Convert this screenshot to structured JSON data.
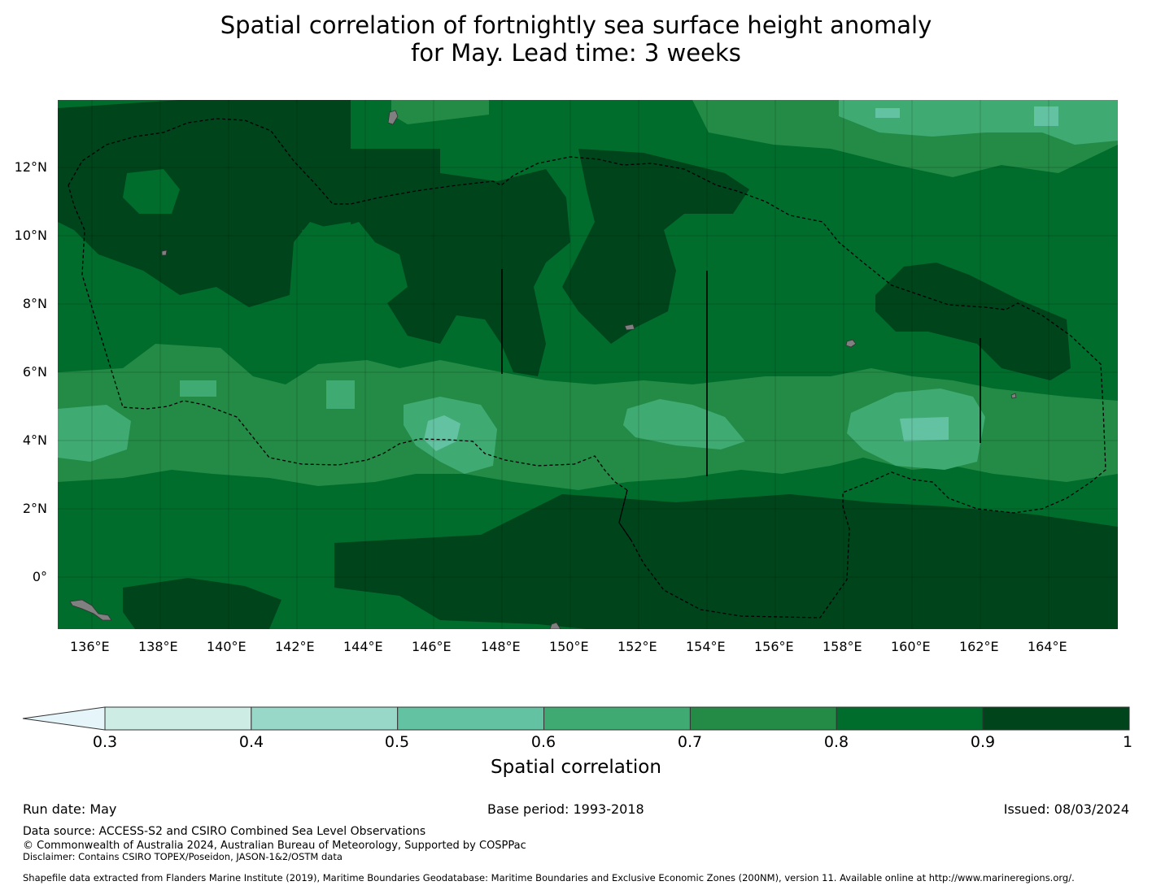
{
  "title": {
    "line1": "Spatial correlation of fortnightly sea surface height anomaly",
    "line2": "for May. Lead time: 3 weeks"
  },
  "map": {
    "lon_range": [
      135,
      166
    ],
    "lat_range": [
      -1.5,
      14
    ],
    "lat_ticks": [
      "12°N",
      "10°N",
      "8°N",
      "6°N",
      "4°N",
      "2°N",
      "0°"
    ],
    "lon_ticks": [
      "136°E",
      "138°E",
      "140°E",
      "142°E",
      "144°E",
      "146°E",
      "148°E",
      "150°E",
      "152°E",
      "154°E",
      "156°E",
      "158°E",
      "160°E",
      "162°E",
      "164°E"
    ],
    "land_color": "#808080",
    "boundary_style": "dashed black (EEZ)"
  },
  "colorbar": {
    "title": "Spatial correlation",
    "ticks": [
      "0.3",
      "0.4",
      "0.5",
      "0.6",
      "0.7",
      "0.8",
      "0.9",
      "1"
    ],
    "colors": [
      "#cdece4",
      "#98d8c8",
      "#62c2a2",
      "#3fab73",
      "#238b45",
      "#006d2c",
      "#00441b"
    ],
    "under_color": "#e5f5f9"
  },
  "footer": {
    "run_date": "Run date: May",
    "base_period": "Base period: 1993-2018",
    "issued": "Issued: 08/03/2024",
    "data_source": "Data source: ACCESS-S2 and CSIRO Combined Sea Level Observations",
    "copyright": "© Commonwealth of Australia 2024, Australian Bureau of Meteorology, Supported by COSPPac",
    "disclaimer": "Disclaimer: Contains CSIRO TOPEX/Poseidon, JASON-1&2/OSTM data",
    "shapefile": "Shapefile data extracted from Flanders Marine Institute (2019), Maritime Boundaries Geodatabase: Maritime Boundaries and Exclusive Economic Zones (200NM), version 11. Available online at http://www.marineregions.org/."
  }
}
